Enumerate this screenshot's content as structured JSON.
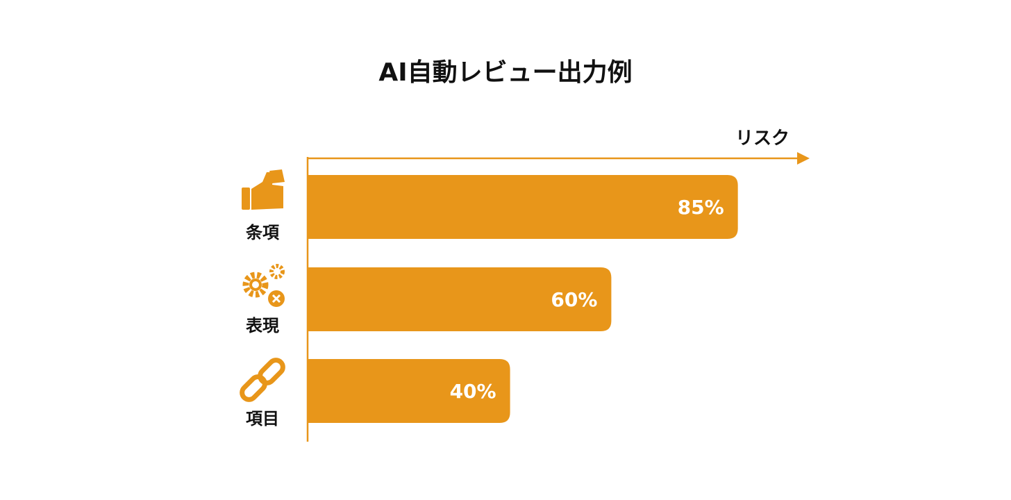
{
  "chart_data": {
    "type": "bar",
    "orientation": "horizontal",
    "title": "AI自動レビュー出力例",
    "x_label": "リスク",
    "categories": [
      "条項",
      "表現",
      "項目"
    ],
    "values": [
      85,
      60,
      40
    ],
    "value_labels": [
      "85%",
      "60%",
      "40%"
    ],
    "color": "#E8961A",
    "xlim": [
      0,
      100
    ]
  }
}
